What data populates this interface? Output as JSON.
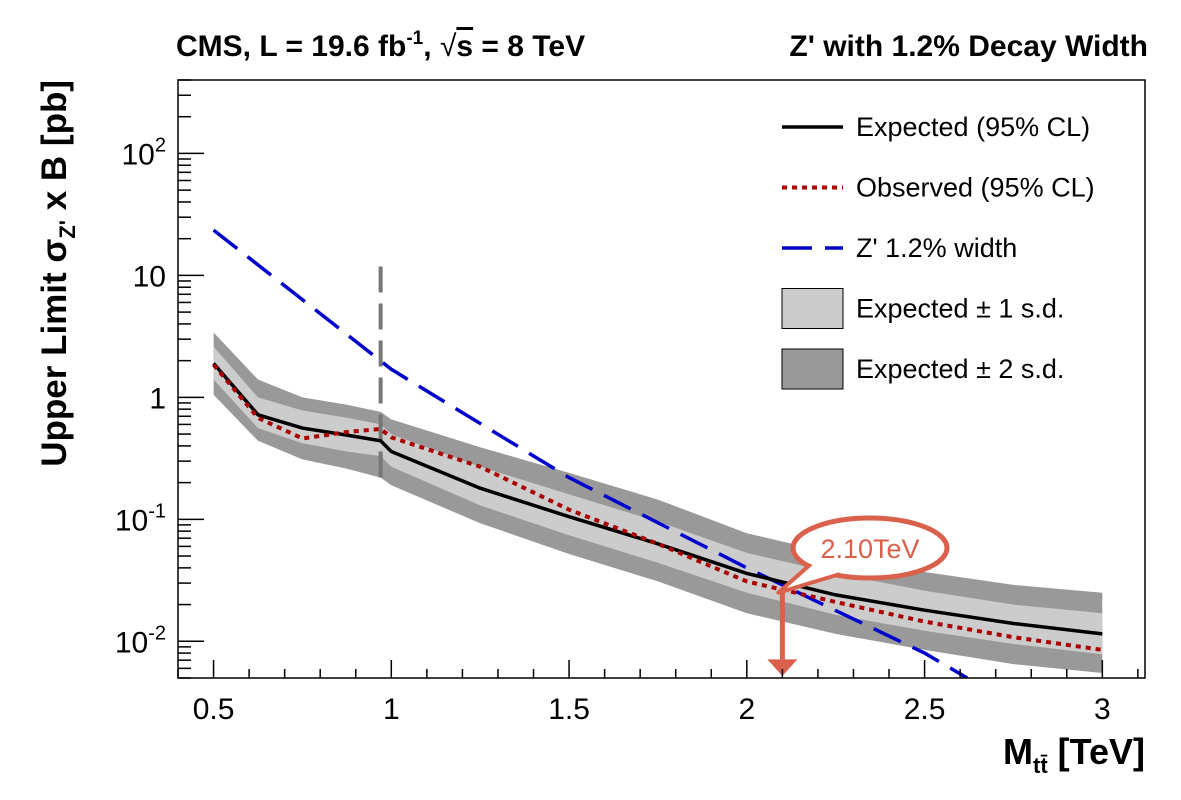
{
  "header": {
    "experiment": "CMS, L = 19.6 fb",
    "lumi_exp": "-1",
    "energy_prefix": ", ",
    "sqrt_sign": "√",
    "energy_var": "s",
    "energy_value": " = 8 TeV",
    "model": "Z' with 1.2% Decay Width"
  },
  "annotation": {
    "label": "2.10TeV",
    "x": 2.1,
    "color": "#d9604b"
  },
  "chart_data": {
    "type": "line",
    "x_scale": "linear",
    "y_scale": "log",
    "xlim": [
      0.4,
      3.12
    ],
    "ylim": [
      0.005,
      400
    ],
    "xlabel": "M",
    "xlabel_sub": "tt̄",
    "xlabel_unit": " [TeV]",
    "ylabel": "Upper Limit σ",
    "ylabel_sub": "Z'",
    "ylabel_suffix": " x B [pb]",
    "x_ticks": [
      0.5,
      1,
      1.5,
      2,
      2.5,
      3
    ],
    "x_tick_labels": [
      "0.5",
      "1",
      "1.5",
      "2",
      "2.5",
      "3"
    ],
    "y_ticks": [
      0.01,
      0.1,
      1,
      10,
      100
    ],
    "y_tick_labels": [
      {
        "base": "10",
        "exp": "-2"
      },
      {
        "base": "10",
        "exp": "-1"
      },
      {
        "base": "1",
        "exp": ""
      },
      {
        "base": "10",
        "exp": ""
      },
      {
        "base": "10",
        "exp": "2"
      }
    ],
    "x": [
      0.5,
      0.625,
      0.75,
      0.875,
      0.97,
      1.0,
      1.25,
      1.5,
      1.75,
      2.0,
      2.25,
      2.5,
      2.75,
      3.0
    ],
    "series": [
      {
        "name": "Expected (95% CL)",
        "style": "solid",
        "color": "#000000",
        "values": [
          1.9,
          0.72,
          0.56,
          0.49,
          0.44,
          0.36,
          0.18,
          0.105,
          0.063,
          0.036,
          0.024,
          0.018,
          0.014,
          0.0115
        ]
      },
      {
        "name": "Observed (95% CL)",
        "style": "dotted",
        "color": "#aa0000",
        "values": [
          1.85,
          0.68,
          0.46,
          0.52,
          0.55,
          0.47,
          0.27,
          0.12,
          0.063,
          0.031,
          0.021,
          0.0145,
          0.0108,
          0.0085
        ]
      }
    ],
    "theory": {
      "name": "Z' 1.2% width",
      "style": "dashed",
      "color": "#0000cc",
      "x": [
        0.5,
        1.0,
        1.5,
        2.0,
        2.5,
        2.62
      ],
      "values": [
        23.5,
        1.7,
        0.22,
        0.04,
        0.008,
        0.005
      ]
    },
    "bands": [
      {
        "name": "Expected ± 2 s.d.",
        "color": "#999999",
        "low": [
          1.05,
          0.44,
          0.31,
          0.26,
          0.22,
          0.19,
          0.093,
          0.052,
          0.031,
          0.017,
          0.0115,
          0.0085,
          0.0065,
          0.0055
        ],
        "high": [
          3.4,
          1.4,
          1.0,
          0.87,
          0.76,
          0.66,
          0.39,
          0.24,
          0.145,
          0.077,
          0.052,
          0.037,
          0.029,
          0.025
        ]
      },
      {
        "name": "Expected ± 1 s.d.",
        "color": "#cccccc",
        "low": [
          1.4,
          0.56,
          0.42,
          0.36,
          0.33,
          0.27,
          0.13,
          0.074,
          0.044,
          0.025,
          0.0165,
          0.0122,
          0.0095,
          0.0078
        ],
        "high": [
          2.6,
          1.0,
          0.78,
          0.68,
          0.6,
          0.5,
          0.27,
          0.16,
          0.096,
          0.053,
          0.036,
          0.026,
          0.02,
          0.017
        ]
      }
    ],
    "vline": {
      "x": 0.97,
      "ymin": 0.22,
      "ymax": 12,
      "color": "#777777",
      "style": "dashed"
    },
    "legend": {
      "position": "top-right",
      "entries": [
        {
          "label": "Expected (95% CL)",
          "kind": "line",
          "style": "solid",
          "color": "#000000"
        },
        {
          "label": "Observed (95% CL)",
          "kind": "line",
          "style": "dotted",
          "color": "#aa0000"
        },
        {
          "label": "Z' 1.2% width",
          "kind": "line",
          "style": "dashed",
          "color": "#0000cc"
        },
        {
          "label": "Expected ± 1 s.d.",
          "kind": "box",
          "color": "#cccccc"
        },
        {
          "label": "Expected ± 2 s.d.",
          "kind": "box",
          "color": "#999999"
        }
      ]
    }
  }
}
